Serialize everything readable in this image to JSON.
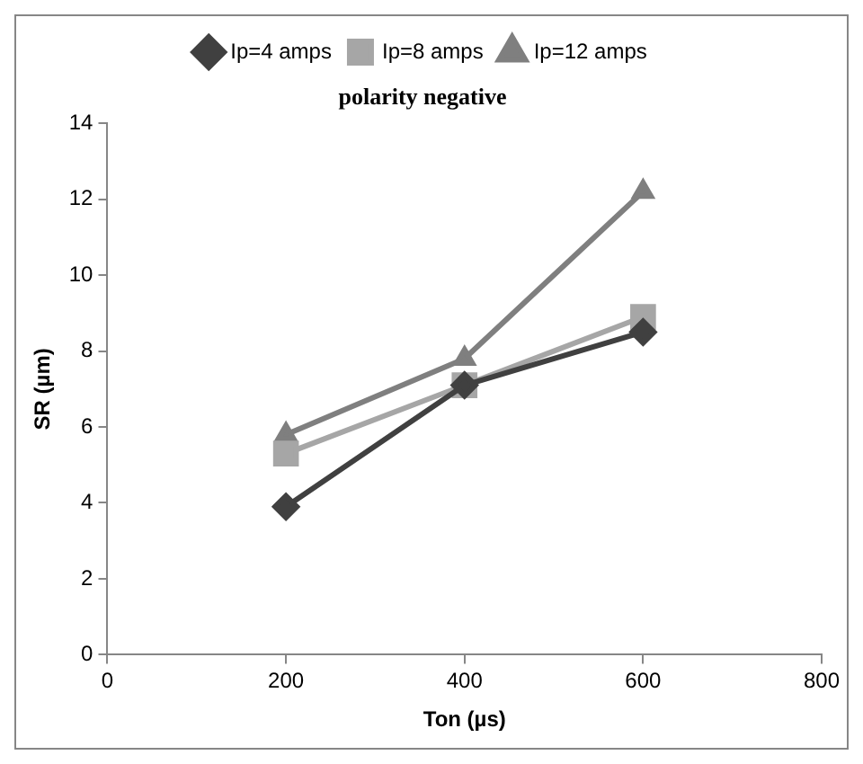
{
  "chart_data": {
    "type": "line",
    "title": "polarity negative",
    "xlabel": "Ton (µs)",
    "ylabel": "SR (µm)",
    "x": [
      200,
      400,
      600
    ],
    "series": [
      {
        "name": "Ip=4 amps",
        "color": "#404040",
        "values": [
          3.9,
          7.1,
          8.5
        ],
        "marker": "diamond"
      },
      {
        "name": "Ip=8 amps",
        "color": "#a6a6a6",
        "values": [
          5.3,
          7.1,
          8.9
        ],
        "marker": "square"
      },
      {
        "name": "Ip=12 amps",
        "color": "#7f7f7f",
        "values": [
          5.8,
          7.8,
          12.2
        ],
        "marker": "triangle"
      }
    ],
    "xlim": [
      0,
      800
    ],
    "xticks": [
      0,
      200,
      400,
      600,
      800
    ],
    "ylim": [
      0,
      14
    ],
    "yticks": [
      0,
      2,
      4,
      6,
      8,
      10,
      12,
      14
    ],
    "grid": false,
    "legend": "top",
    "line_style": "solid"
  }
}
